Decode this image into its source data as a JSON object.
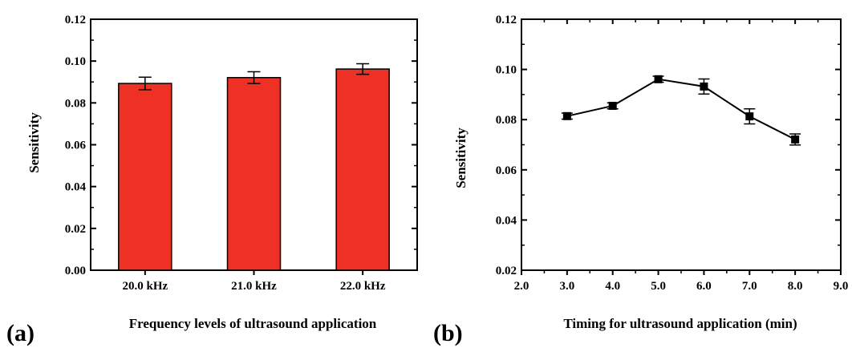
{
  "chart_data": [
    {
      "type": "bar",
      "panel_label": "(a)",
      "categories": [
        "20.0 kHz",
        "21.0 kHz",
        "22.0 kHz"
      ],
      "values": [
        0.0893,
        0.0921,
        0.0962
      ],
      "errors": [
        0.003,
        0.0028,
        0.0025
      ],
      "bar_color": "#ee3124",
      "xlabel": "Frequency levels of ultrasound application",
      "ylabel": "Sensitivity",
      "ylim": [
        0.0,
        0.12
      ],
      "yticks": [
        "0.00",
        "0.02",
        "0.04",
        "0.06",
        "0.08",
        "0.10",
        "0.12"
      ],
      "ytick_values": [
        0.0,
        0.02,
        0.04,
        0.06,
        0.08,
        0.1,
        0.12
      ]
    },
    {
      "type": "line",
      "panel_label": "(b)",
      "x": [
        3.0,
        4.0,
        5.0,
        6.0,
        7.0,
        8.0
      ],
      "values": [
        0.0814,
        0.0855,
        0.0961,
        0.0932,
        0.0813,
        0.0721
      ],
      "errors": [
        0.0012,
        0.0012,
        0.0012,
        0.003,
        0.003,
        0.0022
      ],
      "line_color": "#000000",
      "xlabel": "Timing for ultrasound application (min)",
      "ylabel": "Sensitivity",
      "xlim": [
        2.0,
        9.0
      ],
      "ylim": [
        0.02,
        0.12
      ],
      "xticks": [
        "2.0",
        "3.0",
        "4.0",
        "5.0",
        "6.0",
        "7.0",
        "8.0",
        "9.0"
      ],
      "xtick_values": [
        2.0,
        3.0,
        4.0,
        5.0,
        6.0,
        7.0,
        8.0,
        9.0
      ],
      "yticks": [
        "0.02",
        "0.04",
        "0.06",
        "0.08",
        "0.10",
        "0.12"
      ],
      "ytick_values": [
        0.02,
        0.04,
        0.06,
        0.08,
        0.1,
        0.12
      ]
    }
  ]
}
